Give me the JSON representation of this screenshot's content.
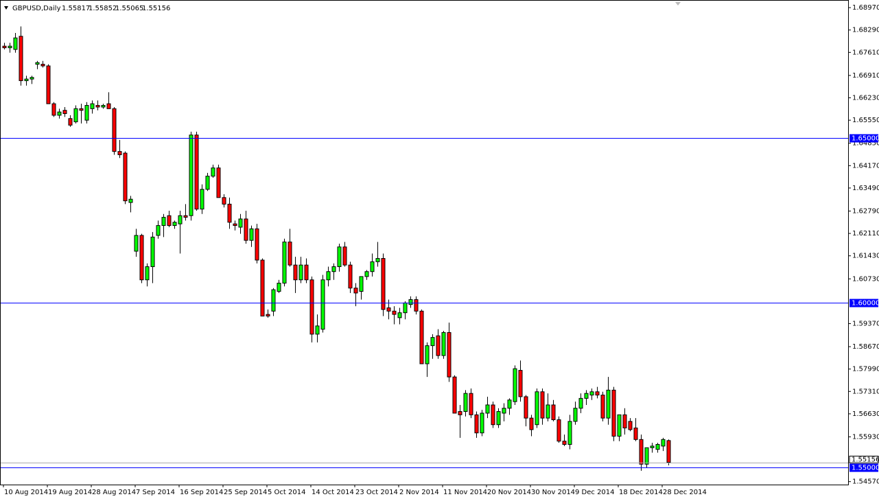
{
  "chart_data": {
    "type": "candlestick",
    "title": "GBPUSD,Daily",
    "up_color": "#00ff00",
    "down_color": "#ff0000",
    "level_color": "#0000ff",
    "categories": [
      "10 Aug 2014",
      null,
      null,
      null,
      null,
      null,
      null,
      null,
      "19 Aug 2014",
      null,
      null,
      null,
      null,
      null,
      null,
      null,
      "28 Aug 2014",
      null,
      null,
      null,
      null,
      null,
      null,
      null,
      "7 Sep 2014",
      null,
      null,
      null,
      null,
      null,
      null,
      null,
      "16 Sep 2014",
      null,
      null,
      null,
      null,
      null,
      null,
      null,
      "25 Sep 2014",
      null,
      null,
      null,
      null,
      null,
      null,
      null,
      "5 Oct 2014",
      null,
      null,
      null,
      null,
      null,
      null,
      null,
      "14 Oct 2014",
      null,
      null,
      null,
      null,
      null,
      null,
      null,
      "23 Oct 2014",
      null,
      null,
      null,
      null,
      null,
      null,
      null,
      "2 Nov 2014",
      null,
      null,
      null,
      null,
      null,
      null,
      null,
      "11 Nov 2014",
      null,
      null,
      null,
      null,
      null,
      null,
      null,
      "20 Nov 2014",
      null,
      null,
      null,
      null,
      null,
      null,
      null,
      "30 Nov 2014",
      null,
      null,
      null,
      null,
      null,
      null,
      null,
      "9 Dec 2014",
      null,
      null,
      null,
      null,
      null,
      null,
      null,
      "18 Dec 2014",
      null,
      null,
      null,
      null,
      null,
      null,
      null,
      "28 Dec 2014",
      null
    ],
    "ohlc": [
      [
        1.678,
        1.679,
        1.677,
        1.6775
      ],
      [
        1.6775,
        1.679,
        1.676,
        1.678
      ],
      [
        1.677,
        1.682,
        1.676,
        1.6805
      ],
      [
        1.681,
        1.684,
        1.666,
        1.6675
      ],
      [
        1.6675,
        1.669,
        1.666,
        1.668
      ],
      [
        1.668,
        1.669,
        1.6665,
        1.6685
      ],
      [
        1.6725,
        1.6735,
        1.671,
        1.673
      ],
      [
        1.6725,
        1.6735,
        1.6715,
        1.672
      ],
      [
        1.672,
        1.6725,
        1.6605,
        1.6605
      ],
      [
        1.6605,
        1.661,
        1.6565,
        1.657
      ],
      [
        1.657,
        1.659,
        1.656,
        1.658
      ],
      [
        1.6585,
        1.6595,
        1.6565,
        1.6575
      ],
      [
        1.656,
        1.657,
        1.6535,
        1.654
      ],
      [
        1.655,
        1.66,
        1.6545,
        1.659
      ],
      [
        1.659,
        1.6605,
        1.6545,
        1.6585
      ],
      [
        1.6555,
        1.661,
        1.6545,
        1.66
      ],
      [
        1.659,
        1.6615,
        1.6575,
        1.6605
      ],
      [
        1.66,
        1.6615,
        1.6585,
        1.6595
      ],
      [
        1.6595,
        1.6605,
        1.659,
        1.66
      ],
      [
        1.6605,
        1.664,
        1.659,
        1.659
      ],
      [
        1.659,
        1.6595,
        1.645,
        1.646
      ],
      [
        1.646,
        1.6495,
        1.644,
        1.645
      ],
      [
        1.6455,
        1.646,
        1.63,
        1.631
      ],
      [
        1.6305,
        1.6325,
        1.6275,
        1.6315
      ],
      [
        1.6157,
        1.6225,
        1.614,
        1.6205
      ],
      [
        1.6205,
        1.621,
        1.606,
        1.607
      ],
      [
        1.607,
        1.612,
        1.605,
        1.611
      ],
      [
        1.611,
        1.6215,
        1.606,
        1.62
      ],
      [
        1.6205,
        1.625,
        1.6195,
        1.6235
      ],
      [
        1.6235,
        1.627,
        1.62,
        1.626
      ],
      [
        1.6265,
        1.628,
        1.623,
        1.6235
      ],
      [
        1.6235,
        1.625,
        1.6225,
        1.6245
      ],
      [
        1.624,
        1.628,
        1.615,
        1.6265
      ],
      [
        1.6265,
        1.63,
        1.625,
        1.626
      ],
      [
        1.6265,
        1.652,
        1.625,
        1.651
      ],
      [
        1.651,
        1.652,
        1.628,
        1.6285
      ],
      [
        1.6285,
        1.636,
        1.627,
        1.6345
      ],
      [
        1.6345,
        1.6395,
        1.634,
        1.6385
      ],
      [
        1.6385,
        1.642,
        1.638,
        1.641
      ],
      [
        1.641,
        1.642,
        1.632,
        1.632
      ],
      [
        1.632,
        1.633,
        1.629,
        1.63
      ],
      [
        1.63,
        1.632,
        1.6225,
        1.6245
      ],
      [
        1.624,
        1.625,
        1.622,
        1.6235
      ],
      [
        1.623,
        1.627,
        1.621,
        1.6255
      ],
      [
        1.6255,
        1.628,
        1.618,
        1.619
      ],
      [
        1.619,
        1.6235,
        1.617,
        1.6225
      ],
      [
        1.6225,
        1.624,
        1.612,
        1.613
      ],
      [
        1.613,
        1.6135,
        1.596,
        1.596
      ],
      [
        1.5965,
        1.598,
        1.5955,
        1.596
      ],
      [
        1.5975,
        1.6045,
        1.596,
        1.604
      ],
      [
        1.6035,
        1.607,
        1.603,
        1.606
      ],
      [
        1.606,
        1.6195,
        1.605,
        1.6185
      ],
      [
        1.6185,
        1.6225,
        1.611,
        1.6115
      ],
      [
        1.6115,
        1.614,
        1.603,
        1.607
      ],
      [
        1.607,
        1.614,
        1.606,
        1.6115
      ],
      [
        1.6115,
        1.6135,
        1.606,
        1.607
      ],
      [
        1.607,
        1.608,
        1.588,
        1.5905
      ],
      [
        1.5905,
        1.5965,
        1.588,
        1.593
      ],
      [
        1.592,
        1.6085,
        1.591,
        1.607
      ],
      [
        1.607,
        1.611,
        1.605,
        1.6095
      ],
      [
        1.6095,
        1.612,
        1.607,
        1.611
      ],
      [
        1.611,
        1.618,
        1.6095,
        1.617
      ],
      [
        1.617,
        1.6185,
        1.611,
        1.6115
      ],
      [
        1.6115,
        1.6125,
        1.603,
        1.6045
      ],
      [
        1.6045,
        1.606,
        1.599,
        1.603
      ],
      [
        1.6035,
        1.608,
        1.601,
        1.608
      ],
      [
        1.608,
        1.61,
        1.607,
        1.6095
      ],
      [
        1.6095,
        1.615,
        1.608,
        1.6125
      ],
      [
        1.6125,
        1.6185,
        1.611,
        1.6135
      ],
      [
        1.6135,
        1.615,
        1.596,
        1.598
      ],
      [
        1.5985,
        1.601,
        1.595,
        1.5975
      ],
      [
        1.5975,
        1.599,
        1.5935,
        1.5965
      ],
      [
        1.5955,
        1.5985,
        1.5935,
        1.597
      ],
      [
        1.597,
        1.6005,
        1.595,
        1.6
      ],
      [
        1.5995,
        1.602,
        1.5985,
        1.601
      ],
      [
        1.601,
        1.602,
        1.5965,
        1.5975
      ],
      [
        1.5975,
        1.598,
        1.5815,
        1.5815
      ],
      [
        1.5815,
        1.588,
        1.5775,
        1.587
      ],
      [
        1.587,
        1.5905,
        1.583,
        1.5895
      ],
      [
        1.59,
        1.592,
        1.583,
        1.584
      ],
      [
        1.584,
        1.5915,
        1.583,
        1.591
      ],
      [
        1.591,
        1.594,
        1.576,
        1.5775
      ],
      [
        1.5775,
        1.578,
        1.5665,
        1.5665
      ],
      [
        1.567,
        1.569,
        1.559,
        1.566
      ],
      [
        1.567,
        1.5735,
        1.5655,
        1.5725
      ],
      [
        1.5725,
        1.574,
        1.565,
        1.566
      ],
      [
        1.566,
        1.567,
        1.559,
        1.5605
      ],
      [
        1.5605,
        1.5675,
        1.5595,
        1.5665
      ],
      [
        1.5665,
        1.5715,
        1.565,
        1.569
      ],
      [
        1.569,
        1.57,
        1.562,
        1.563
      ],
      [
        1.563,
        1.568,
        1.562,
        1.567
      ],
      [
        1.5665,
        1.5695,
        1.564,
        1.568
      ],
      [
        1.568,
        1.571,
        1.566,
        1.5705
      ],
      [
        1.57,
        1.581,
        1.569,
        1.58
      ],
      [
        1.5795,
        1.5825,
        1.57,
        1.5715
      ],
      [
        1.5715,
        1.572,
        1.5625,
        1.565
      ],
      [
        1.565,
        1.566,
        1.5595,
        1.5615
      ],
      [
        1.563,
        1.574,
        1.562,
        1.573
      ],
      [
        1.573,
        1.574,
        1.563,
        1.565
      ],
      [
        1.565,
        1.5725,
        1.564,
        1.569
      ],
      [
        1.569,
        1.5705,
        1.564,
        1.5645
      ],
      [
        1.5645,
        1.5655,
        1.5575,
        1.558
      ],
      [
        1.558,
        1.56,
        1.5565,
        1.557
      ],
      [
        1.557,
        1.566,
        1.5555,
        1.564
      ],
      [
        1.564,
        1.57,
        1.563,
        1.568
      ],
      [
        1.568,
        1.5725,
        1.5665,
        1.571
      ],
      [
        1.571,
        1.5735,
        1.569,
        1.5725
      ],
      [
        1.572,
        1.574,
        1.5705,
        1.573
      ],
      [
        1.573,
        1.5745,
        1.571,
        1.572
      ],
      [
        1.572,
        1.573,
        1.564,
        1.565
      ],
      [
        1.565,
        1.5775,
        1.563,
        1.5735
      ],
      [
        1.5735,
        1.5745,
        1.558,
        1.5595
      ],
      [
        1.5595,
        1.566,
        1.558,
        1.566
      ],
      [
        1.566,
        1.568,
        1.56,
        1.562
      ],
      [
        1.564,
        1.565,
        1.561,
        1.5615
      ],
      [
        1.562,
        1.565,
        1.558,
        1.5585
      ],
      [
        1.5585,
        1.56,
        1.549,
        1.551
      ],
      [
        1.551,
        1.556,
        1.55,
        1.556
      ],
      [
        1.556,
        1.5575,
        1.5545,
        1.5565
      ],
      [
        1.5555,
        1.5575,
        1.5545,
        1.557
      ],
      [
        1.5565,
        1.559,
        1.555,
        1.5585
      ],
      [
        1.55817,
        1.55852,
        1.55065,
        1.55156
      ]
    ],
    "ylim": [
      1.5448,
      1.6916
    ],
    "yticks": [
      {
        "value": 1.6897,
        "label": "1.68970"
      },
      {
        "value": 1.6829,
        "label": "1.68290"
      },
      {
        "value": 1.6761,
        "label": "1.67610"
      },
      {
        "value": 1.6691,
        "label": "1.66910"
      },
      {
        "value": 1.6623,
        "label": "1.66230"
      },
      {
        "value": 1.6555,
        "label": "1.65550"
      },
      {
        "value": 1.6485,
        "label": "1.64850"
      },
      {
        "value": 1.6417,
        "label": "1.64170"
      },
      {
        "value": 1.6349,
        "label": "1.63490"
      },
      {
        "value": 1.6279,
        "label": "1.62790"
      },
      {
        "value": 1.6211,
        "label": "1.62110"
      },
      {
        "value": 1.6143,
        "label": "1.61430"
      },
      {
        "value": 1.6073,
        "label": "1.60730"
      },
      {
        "value": 1.5937,
        "label": "1.59370"
      },
      {
        "value": 1.5867,
        "label": "1.58670"
      },
      {
        "value": 1.5799,
        "label": "1.57990"
      },
      {
        "value": 1.5731,
        "label": "1.57310"
      },
      {
        "value": 1.5663,
        "label": "1.56630"
      },
      {
        "value": 1.5593,
        "label": "1.55930"
      },
      {
        "value": 1.5457,
        "label": "1.54570"
      }
    ],
    "levels": [
      {
        "value": 1.65,
        "label": "1.65000"
      },
      {
        "value": 1.6,
        "label": "1.60000"
      },
      {
        "value": 1.55,
        "label": "1.55000"
      }
    ]
  }
}
